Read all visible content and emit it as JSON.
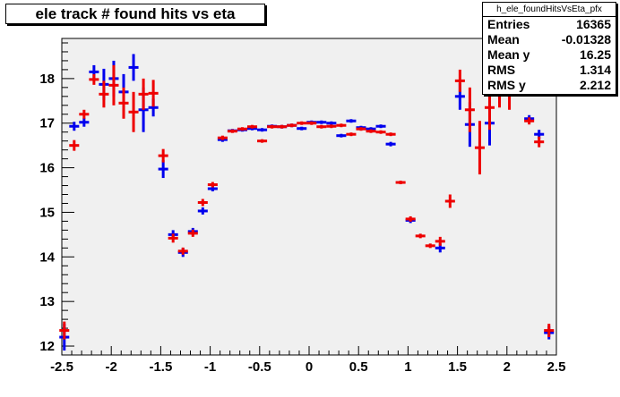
{
  "chart_data": {
    "type": "scatter",
    "title": "ele track # found hits vs eta",
    "xlim": [
      -2.5,
      2.5
    ],
    "ylim": [
      11.8,
      18.9
    ],
    "x_ticks": [
      "-2.5",
      "-2",
      "-1.5",
      "-1",
      "-0.5",
      "0",
      "0.5",
      "1",
      "1.5",
      "2",
      "2.5"
    ],
    "x_tick_values": [
      -2.5,
      -2,
      -1.5,
      -1,
      -0.5,
      0,
      0.5,
      1,
      1.5,
      2,
      2.5
    ],
    "y_ticks": [
      "12",
      "13",
      "14",
      "15",
      "16",
      "17",
      "18"
    ],
    "y_tick_values": [
      12,
      13,
      14,
      15,
      16,
      17,
      18
    ],
    "grid": false,
    "stats": {
      "name": "h_ele_foundHitsVsEta_pfx",
      "rows": [
        {
          "label": "Entries",
          "value": "16365"
        },
        {
          "label": "Mean",
          "value": "-0.01328"
        },
        {
          "label": "Mean y",
          "value": "16.25"
        },
        {
          "label": "RMS",
          "value": "1.314"
        },
        {
          "label": "RMS y",
          "value": "2.212"
        }
      ]
    },
    "series": [
      {
        "color": "#0000ee",
        "x": [
          -2.475,
          -2.375,
          -2.275,
          -2.175,
          -2.075,
          -1.975,
          -1.875,
          -1.775,
          -1.675,
          -1.575,
          -1.475,
          -1.375,
          -1.275,
          -1.175,
          -1.075,
          -0.975,
          -0.875,
          -0.775,
          -0.675,
          -0.575,
          -0.475,
          -0.375,
          -0.275,
          -0.175,
          -0.075,
          0.025,
          0.125,
          0.225,
          0.325,
          0.425,
          0.525,
          0.625,
          0.725,
          0.825,
          0.925,
          1.025,
          1.125,
          1.225,
          1.325,
          1.425,
          1.525,
          1.625,
          1.725,
          1.825,
          1.925,
          2.025,
          2.125,
          2.225,
          2.325,
          2.425
        ],
        "y": [
          12.2,
          16.93,
          17.02,
          18.15,
          17.87,
          18.0,
          17.7,
          18.25,
          17.3,
          17.35,
          15.97,
          14.5,
          14.1,
          14.57,
          15.03,
          15.53,
          16.63,
          16.83,
          16.85,
          16.88,
          16.85,
          16.93,
          16.92,
          16.95,
          16.88,
          17.02,
          17.02,
          17.0,
          16.72,
          17.05,
          16.9,
          16.87,
          16.93,
          16.53,
          null,
          14.82,
          null,
          null,
          14.2,
          null,
          17.6,
          16.97,
          null,
          17.0,
          17.8,
          18.05,
          null,
          17.1,
          16.75,
          12.3
        ],
        "err": [
          0.3,
          0.1,
          0.1,
          0.15,
          0.35,
          0.4,
          0.4,
          0.3,
          0.5,
          0.2,
          0.2,
          0.1,
          0.1,
          0.08,
          0.08,
          0.06,
          0.05,
          0.04,
          0.04,
          0.04,
          0.04,
          0.04,
          0.04,
          0.04,
          0.04,
          0.04,
          0.04,
          0.04,
          0.04,
          0.04,
          0.04,
          0.04,
          0.04,
          0.05,
          0,
          0.06,
          0,
          0,
          0.1,
          0,
          0.3,
          0.5,
          0,
          0.5,
          0.35,
          0.3,
          0,
          0.08,
          0.1,
          0.15
        ]
      },
      {
        "color": "#ee0000",
        "x": [
          -2.475,
          -2.375,
          -2.275,
          -2.175,
          -2.075,
          -1.975,
          -1.875,
          -1.775,
          -1.675,
          -1.575,
          -1.475,
          -1.375,
          -1.275,
          -1.175,
          -1.075,
          -0.975,
          -0.875,
          -0.775,
          -0.675,
          -0.575,
          -0.475,
          -0.375,
          -0.275,
          -0.175,
          -0.075,
          0.025,
          0.125,
          0.225,
          0.325,
          0.425,
          0.525,
          0.625,
          0.725,
          0.825,
          0.925,
          1.025,
          1.125,
          1.225,
          1.325,
          1.425,
          1.525,
          1.625,
          1.725,
          1.825,
          1.925,
          2.025,
          2.125,
          2.225,
          2.325,
          2.425
        ],
        "y": [
          12.35,
          16.5,
          17.2,
          17.98,
          17.65,
          17.85,
          17.45,
          17.25,
          17.65,
          17.67,
          16.27,
          14.42,
          14.13,
          14.53,
          15.22,
          15.62,
          16.67,
          16.82,
          16.87,
          16.92,
          16.6,
          16.92,
          16.92,
          16.95,
          17.0,
          17.0,
          16.92,
          16.93,
          16.95,
          16.75,
          16.87,
          16.82,
          16.8,
          16.75,
          15.67,
          14.85,
          14.47,
          14.25,
          14.35,
          15.25,
          17.95,
          17.3,
          16.45,
          17.35,
          17.75,
          17.7,
          18.15,
          17.05,
          16.58,
          12.35
        ],
        "err": [
          0.2,
          0.12,
          0.1,
          0.12,
          0.3,
          0.45,
          0.35,
          0.45,
          0.35,
          0.3,
          0.15,
          0.1,
          0.08,
          0.08,
          0.08,
          0.06,
          0.05,
          0.04,
          0.04,
          0.04,
          0.04,
          0.04,
          0.04,
          0.04,
          0.04,
          0.04,
          0.04,
          0.04,
          0.04,
          0.04,
          0.04,
          0.04,
          0.04,
          0.04,
          0.04,
          0.06,
          0.05,
          0.05,
          0.1,
          0.15,
          0.25,
          0.5,
          0.6,
          0.5,
          0.4,
          0.4,
          0.3,
          0.08,
          0.12,
          0.15
        ]
      }
    ]
  }
}
